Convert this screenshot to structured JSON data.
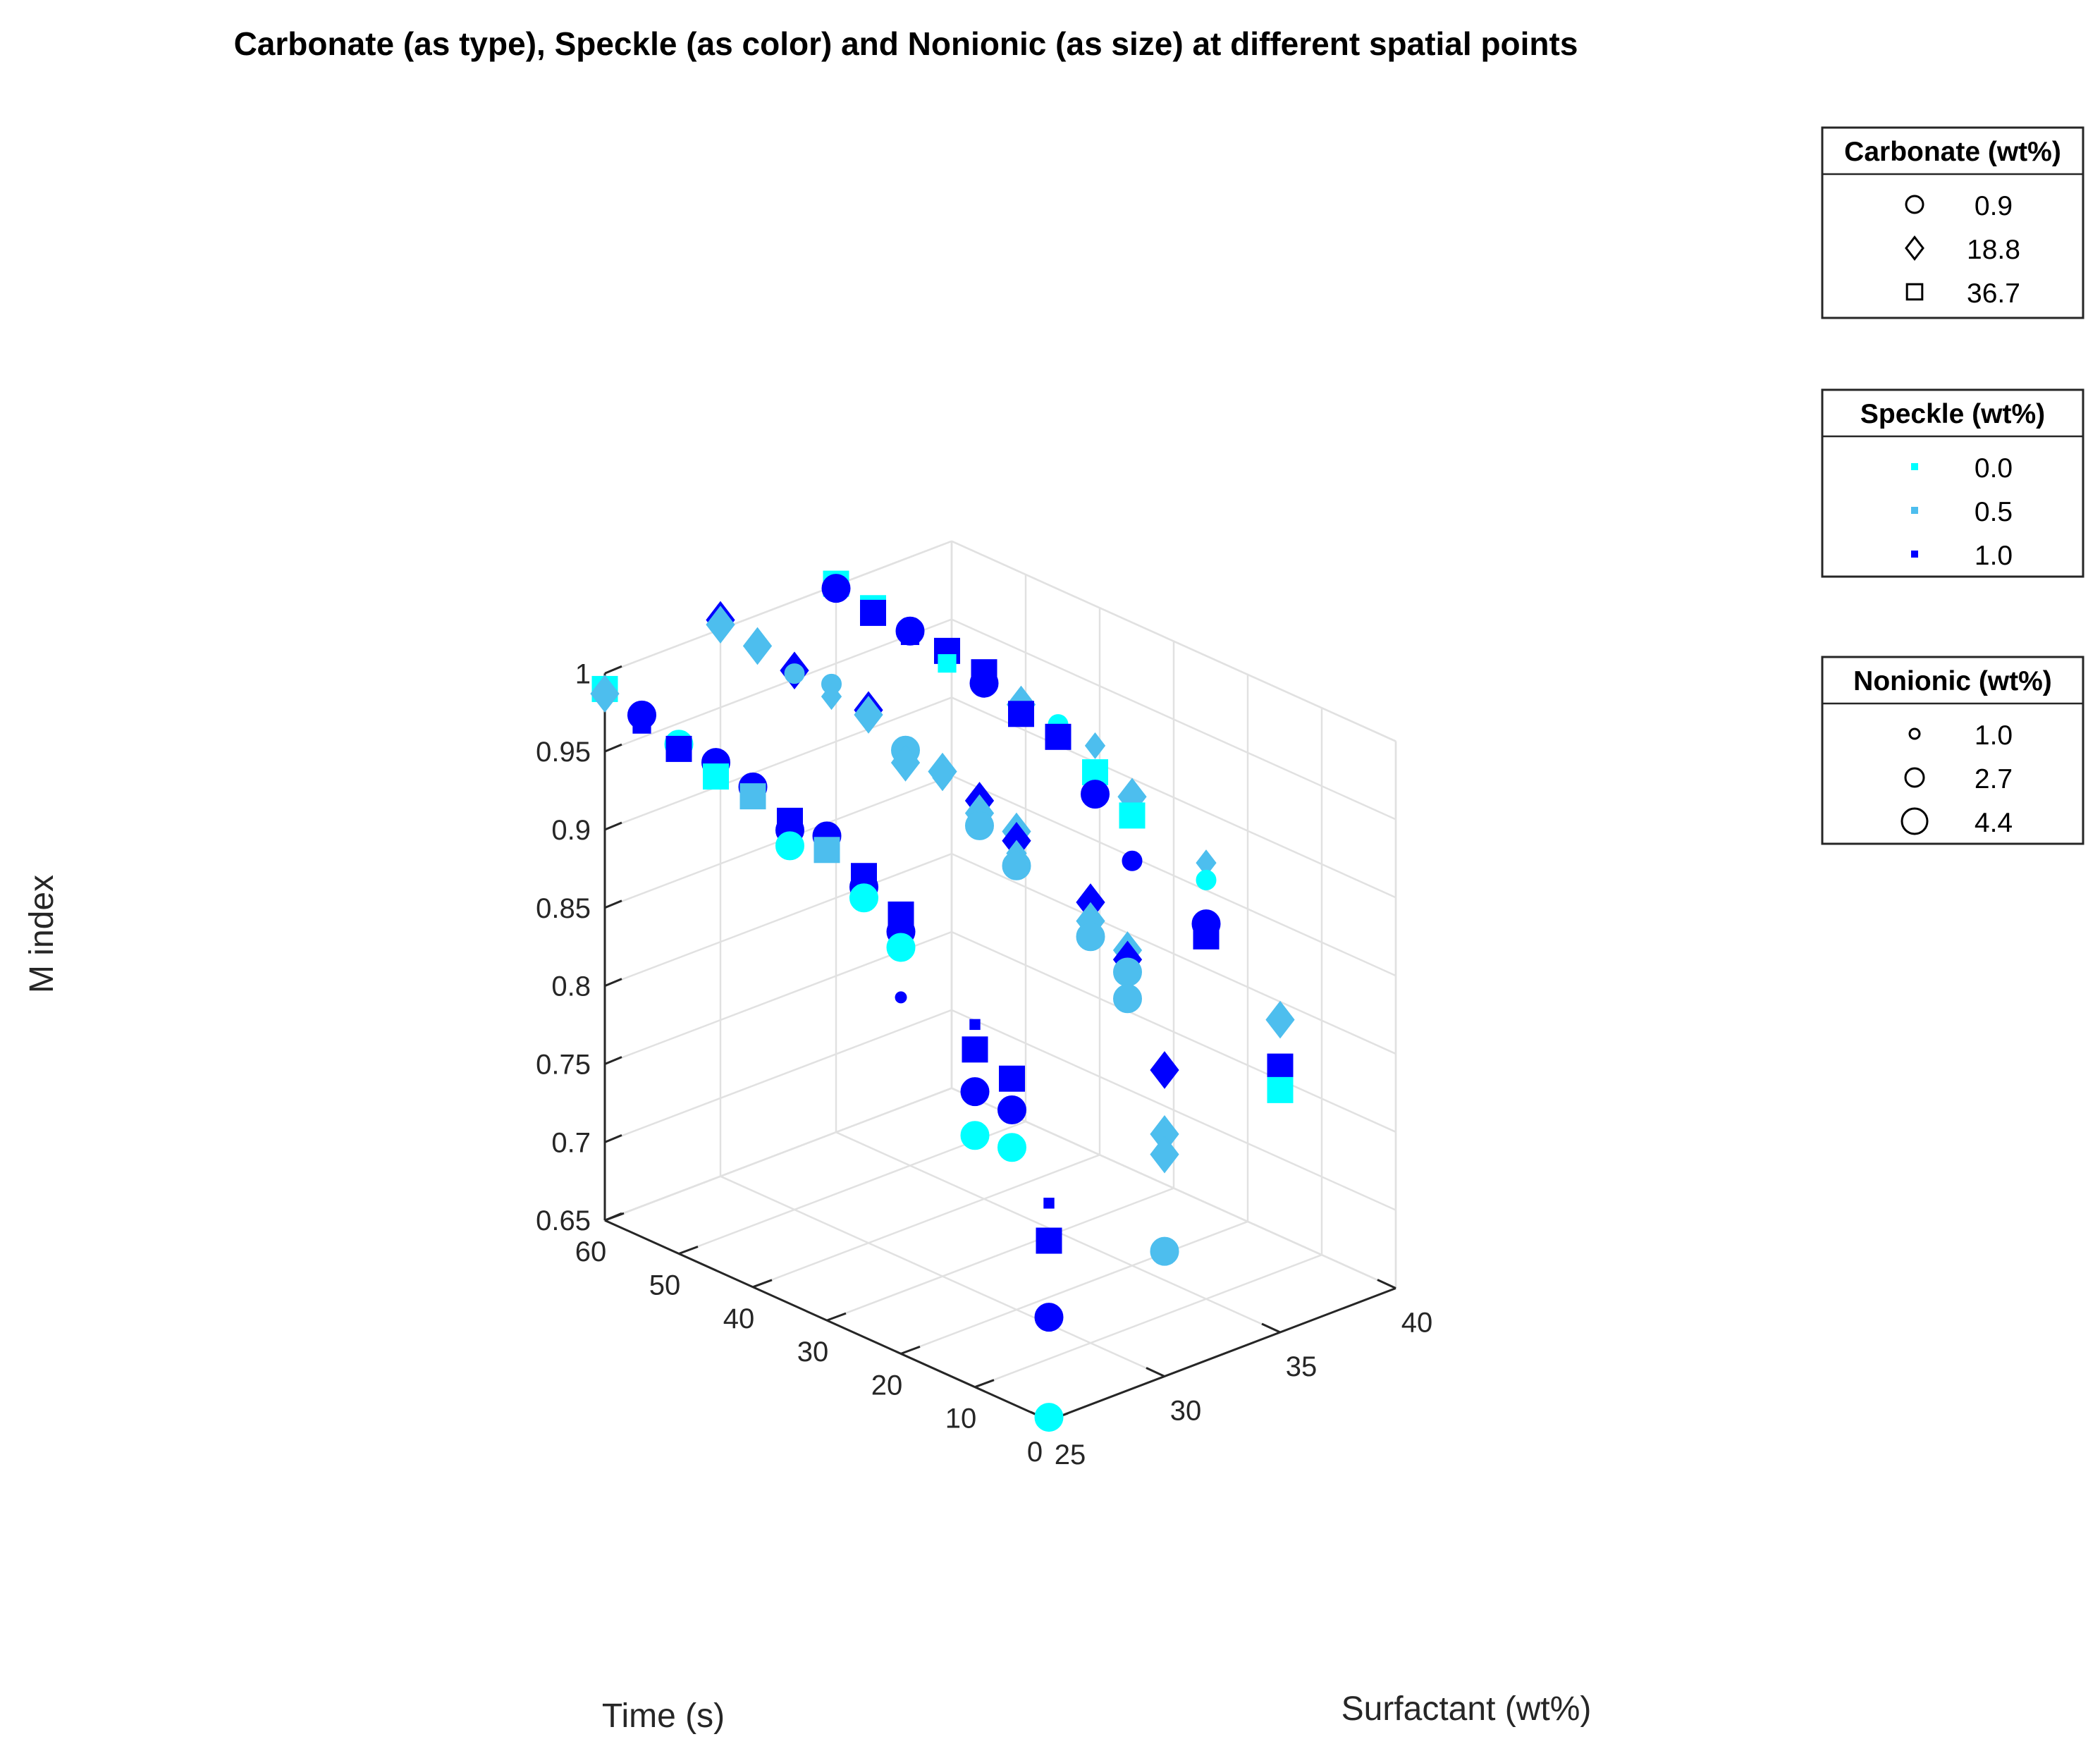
{
  "chart_data": {
    "type": "scatter3d",
    "title": "Carbonate (as type), Speckle (as color) and Nonionic (as size) at different spatial points",
    "xlabel": "Time (s)",
    "ylabel": "Surfactant (wt%)",
    "zlabel": "M index",
    "xlim": [
      0,
      60
    ],
    "ylim": [
      25,
      40
    ],
    "zlim": [
      0.65,
      1.0
    ],
    "xticks": [
      "0",
      "10",
      "20",
      "30",
      "40",
      "50",
      "60"
    ],
    "yticks": [
      "25",
      "30",
      "35",
      "40"
    ],
    "zticks": [
      "0.65",
      "0.7",
      "0.75",
      "0.8",
      "0.85",
      "0.9",
      "0.95",
      "1"
    ],
    "grid": true,
    "colors": {
      "speckle_0.0": "#00FFFF",
      "speckle_0.5": "#4DBEEE",
      "speckle_1.0": "#0000FF"
    },
    "legends": [
      {
        "title": "Carbonate (wt%)",
        "kind": "marker",
        "entries": [
          {
            "label": "0.9",
            "marker": "circle"
          },
          {
            "label": "18.8",
            "marker": "diamond"
          },
          {
            "label": "36.7",
            "marker": "square"
          }
        ]
      },
      {
        "title": "Speckle (wt%)",
        "kind": "color",
        "entries": [
          {
            "label": "0.0",
            "color": "#00FFFF"
          },
          {
            "label": "0.5",
            "color": "#4DBEEE"
          },
          {
            "label": "1.0",
            "color": "#0000FF"
          }
        ]
      },
      {
        "title": "Nonionic (wt%)",
        "kind": "size",
        "entries": [
          {
            "label": "1.0",
            "size": 1
          },
          {
            "label": "2.7",
            "size": 2
          },
          {
            "label": "4.4",
            "size": 3
          }
        ]
      }
    ],
    "points": [
      {
        "t": 60,
        "s": 25,
        "m": 0.99,
        "car": "square",
        "spk": 0.0,
        "non": 4.4
      },
      {
        "t": 60,
        "s": 25,
        "m": 0.987,
        "car": "diamond",
        "spk": 0.5,
        "non": 4.4
      },
      {
        "t": 55,
        "s": 25,
        "m": 0.984,
        "car": "circle",
        "spk": 1.0,
        "non": 4.4
      },
      {
        "t": 55,
        "s": 25,
        "m": 0.978,
        "car": "square",
        "spk": 1.0,
        "non": 2.7
      },
      {
        "t": 50,
        "s": 25,
        "m": 0.98,
        "car": "circle",
        "spk": 1.0,
        "non": 1.0
      },
      {
        "t": 50,
        "s": 25,
        "m": 0.976,
        "car": "circle",
        "spk": 0.0,
        "non": 4.4
      },
      {
        "t": 50,
        "s": 25,
        "m": 0.973,
        "car": "square",
        "spk": 1.0,
        "non": 4.4
      },
      {
        "t": 45,
        "s": 25,
        "m": 0.975,
        "car": "circle",
        "spk": 1.0,
        "non": 4.4
      },
      {
        "t": 45,
        "s": 25,
        "m": 0.966,
        "car": "square",
        "spk": 0.0,
        "non": 4.4
      },
      {
        "t": 40,
        "s": 25,
        "m": 0.97,
        "car": "circle",
        "spk": 1.0,
        "non": 4.4
      },
      {
        "t": 40,
        "s": 25,
        "m": 0.964,
        "car": "square",
        "spk": 0.5,
        "non": 4.4
      },
      {
        "t": 35,
        "s": 25,
        "m": 0.959,
        "car": "square",
        "spk": 1.0,
        "non": 4.4
      },
      {
        "t": 35,
        "s": 25,
        "m": 0.953,
        "car": "circle",
        "spk": 1.0,
        "non": 4.4
      },
      {
        "t": 35,
        "s": 25,
        "m": 0.943,
        "car": "circle",
        "spk": 0.0,
        "non": 4.4
      },
      {
        "t": 30,
        "s": 25,
        "m": 0.96,
        "car": "circle",
        "spk": 1.0,
        "non": 4.4
      },
      {
        "t": 30,
        "s": 25,
        "m": 0.951,
        "car": "square",
        "spk": 0.5,
        "non": 4.4
      },
      {
        "t": 25,
        "s": 25,
        "m": 0.945,
        "car": "square",
        "spk": 1.0,
        "non": 4.4
      },
      {
        "t": 25,
        "s": 25,
        "m": 0.938,
        "car": "circle",
        "spk": 1.0,
        "non": 4.4
      },
      {
        "t": 25,
        "s": 25,
        "m": 0.931,
        "car": "circle",
        "spk": 0.0,
        "non": 4.4
      },
      {
        "t": 20,
        "s": 25,
        "m": 0.931,
        "car": "square",
        "spk": 1.0,
        "non": 4.4
      },
      {
        "t": 20,
        "s": 25,
        "m": 0.92,
        "car": "circle",
        "spk": 1.0,
        "non": 4.4
      },
      {
        "t": 20,
        "s": 25,
        "m": 0.91,
        "car": "circle",
        "spk": 0.0,
        "non": 4.4
      },
      {
        "t": 20,
        "s": 25,
        "m": 0.878,
        "car": "circle",
        "spk": 1.0,
        "non": 1.0
      },
      {
        "t": 10,
        "s": 25,
        "m": 0.882,
        "car": "square",
        "spk": 1.0,
        "non": 1.0
      },
      {
        "t": 10,
        "s": 25,
        "m": 0.866,
        "car": "square",
        "spk": 1.0,
        "non": 4.4
      },
      {
        "t": 10,
        "s": 25,
        "m": 0.839,
        "car": "circle",
        "spk": 1.0,
        "non": 4.4
      },
      {
        "t": 10,
        "s": 25,
        "m": 0.811,
        "car": "circle",
        "spk": 0.0,
        "non": 4.4
      },
      {
        "t": 5,
        "s": 25,
        "m": 0.858,
        "car": "square",
        "spk": 1.0,
        "non": 4.4
      },
      {
        "t": 5,
        "s": 25,
        "m": 0.838,
        "car": "circle",
        "spk": 1.0,
        "non": 4.4
      },
      {
        "t": 5,
        "s": 25,
        "m": 0.814,
        "car": "circle",
        "spk": 0.0,
        "non": 4.4
      },
      {
        "t": 0,
        "s": 25,
        "m": 0.789,
        "car": "square",
        "spk": 1.0,
        "non": 1.0
      },
      {
        "t": 0,
        "s": 25,
        "m": 0.765,
        "car": "square",
        "spk": 1.0,
        "non": 4.4
      },
      {
        "t": 0,
        "s": 25,
        "m": 0.716,
        "car": "circle",
        "spk": 1.0,
        "non": 4.4
      },
      {
        "t": 0,
        "s": 25,
        "m": 0.652,
        "car": "circle",
        "spk": 0.0,
        "non": 4.4
      },
      {
        "t": 60,
        "s": 30,
        "m": 1.006,
        "car": "diamond",
        "spk": 1.0,
        "non": 4.4
      },
      {
        "t": 60,
        "s": 30,
        "m": 1.003,
        "car": "diamond",
        "spk": 0.5,
        "non": 4.4
      },
      {
        "t": 55,
        "s": 30,
        "m": 1.0,
        "car": "diamond",
        "spk": 0.5,
        "non": 4.4
      },
      {
        "t": 55,
        "s": 30,
        "m": 0.997,
        "car": "diamond",
        "spk": 0.5,
        "non": 2.7
      },
      {
        "t": 50,
        "s": 30,
        "m": 0.995,
        "car": "diamond",
        "spk": 1.0,
        "non": 4.4
      },
      {
        "t": 50,
        "s": 30,
        "m": 0.993,
        "car": "circle",
        "spk": 0.5,
        "non": 2.7
      },
      {
        "t": 45,
        "s": 30,
        "m": 0.997,
        "car": "circle",
        "spk": 0.5,
        "non": 2.7
      },
      {
        "t": 45,
        "s": 30,
        "m": 0.989,
        "car": "diamond",
        "spk": 0.5,
        "non": 2.7
      },
      {
        "t": 40,
        "s": 30,
        "m": 0.991,
        "car": "diamond",
        "spk": 1.0,
        "non": 4.4
      },
      {
        "t": 40,
        "s": 30,
        "m": 0.988,
        "car": "diamond",
        "spk": 0.5,
        "non": 4.4
      },
      {
        "t": 35,
        "s": 30,
        "m": 0.976,
        "car": "circle",
        "spk": 0.5,
        "non": 4.4
      },
      {
        "t": 35,
        "s": 30,
        "m": 0.968,
        "car": "diamond",
        "spk": 0.5,
        "non": 4.4
      },
      {
        "t": 30,
        "s": 30,
        "m": 0.973,
        "car": "diamond",
        "spk": 0.5,
        "non": 4.4
      },
      {
        "t": 30,
        "s": 30,
        "m": 0.969,
        "car": "diamond",
        "spk": 0.5,
        "non": 2.7
      },
      {
        "t": 25,
        "s": 30,
        "m": 0.965,
        "car": "diamond",
        "spk": 1.0,
        "non": 4.4
      },
      {
        "t": 25,
        "s": 30,
        "m": 0.957,
        "car": "diamond",
        "spk": 0.5,
        "non": 4.4
      },
      {
        "t": 25,
        "s": 30,
        "m": 0.949,
        "car": "circle",
        "spk": 0.5,
        "non": 4.4
      },
      {
        "t": 20,
        "s": 30,
        "m": 0.956,
        "car": "diamond",
        "spk": 0.5,
        "non": 4.4
      },
      {
        "t": 20,
        "s": 30,
        "m": 0.95,
        "car": "diamond",
        "spk": 1.0,
        "non": 4.4
      },
      {
        "t": 20,
        "s": 30,
        "m": 0.942,
        "car": "diamond",
        "spk": 0.5,
        "non": 2.7
      },
      {
        "t": 20,
        "s": 30,
        "m": 0.934,
        "car": "circle",
        "spk": 0.5,
        "non": 4.4
      },
      {
        "t": 10,
        "s": 30,
        "m": 0.932,
        "car": "diamond",
        "spk": 1.0,
        "non": 4.4
      },
      {
        "t": 10,
        "s": 30,
        "m": 0.92,
        "car": "diamond",
        "spk": 0.5,
        "non": 4.4
      },
      {
        "t": 10,
        "s": 30,
        "m": 0.91,
        "car": "circle",
        "spk": 0.5,
        "non": 4.4
      },
      {
        "t": 5,
        "s": 30,
        "m": 0.912,
        "car": "diamond",
        "spk": 0.5,
        "non": 4.4
      },
      {
        "t": 5,
        "s": 30,
        "m": 0.906,
        "car": "diamond",
        "spk": 1.0,
        "non": 4.4
      },
      {
        "t": 5,
        "s": 30,
        "m": 0.898,
        "car": "circle",
        "spk": 0.5,
        "non": 4.4
      },
      {
        "t": 5,
        "s": 30,
        "m": 0.881,
        "car": "circle",
        "spk": 0.5,
        "non": 4.4
      },
      {
        "t": 0,
        "s": 30,
        "m": 0.846,
        "car": "diamond",
        "spk": 1.0,
        "non": 4.4
      },
      {
        "t": 0,
        "s": 30,
        "m": 0.805,
        "car": "diamond",
        "spk": 0.5,
        "non": 4.4
      },
      {
        "t": 0,
        "s": 30,
        "m": 0.792,
        "car": "diamond",
        "spk": 0.5,
        "non": 4.4
      },
      {
        "t": 0,
        "s": 30,
        "m": 0.73,
        "car": "circle",
        "spk": 0.5,
        "non": 4.4
      },
      {
        "t": 60,
        "s": 35,
        "m": 1.001,
        "car": "square",
        "spk": 0.0,
        "non": 4.4
      },
      {
        "t": 60,
        "s": 35,
        "m": 0.998,
        "car": "circle",
        "spk": 1.0,
        "non": 4.4
      },
      {
        "t": 55,
        "s": 35,
        "m": 0.996,
        "car": "square",
        "spk": 0.0,
        "non": 4.4
      },
      {
        "t": 55,
        "s": 35,
        "m": 0.993,
        "car": "square",
        "spk": 1.0,
        "non": 4.4
      },
      {
        "t": 50,
        "s": 35,
        "m": 0.992,
        "car": "circle",
        "spk": 1.0,
        "non": 4.4
      },
      {
        "t": 50,
        "s": 35,
        "m": 0.989,
        "car": "square",
        "spk": 1.0,
        "non": 2.7
      },
      {
        "t": 45,
        "s": 35,
        "m": 0.99,
        "car": "square",
        "spk": 1.0,
        "non": 4.4
      },
      {
        "t": 45,
        "s": 35,
        "m": 0.982,
        "car": "square",
        "spk": 0.0,
        "non": 2.7
      },
      {
        "t": 40,
        "s": 35,
        "m": 0.987,
        "car": "square",
        "spk": 1.0,
        "non": 4.4
      },
      {
        "t": 40,
        "s": 35,
        "m": 0.98,
        "car": "circle",
        "spk": 1.0,
        "non": 4.4
      },
      {
        "t": 35,
        "s": 35,
        "m": 0.977,
        "car": "diamond",
        "spk": 0.5,
        "non": 4.4
      },
      {
        "t": 35,
        "s": 35,
        "m": 0.971,
        "car": "square",
        "spk": 1.0,
        "non": 4.4
      },
      {
        "t": 30,
        "s": 35,
        "m": 0.975,
        "car": "circle",
        "spk": 0.0,
        "non": 2.7
      },
      {
        "t": 30,
        "s": 35,
        "m": 0.967,
        "car": "square",
        "spk": 1.0,
        "non": 4.4
      },
      {
        "t": 25,
        "s": 35,
        "m": 0.972,
        "car": "diamond",
        "spk": 0.5,
        "non": 2.7
      },
      {
        "t": 25,
        "s": 35,
        "m": 0.955,
        "car": "square",
        "spk": 0.0,
        "non": 4.4
      },
      {
        "t": 25,
        "s": 35,
        "m": 0.941,
        "car": "circle",
        "spk": 1.0,
        "non": 4.4
      },
      {
        "t": 20,
        "s": 35,
        "m": 0.95,
        "car": "diamond",
        "spk": 0.5,
        "non": 4.4
      },
      {
        "t": 20,
        "s": 35,
        "m": 0.938,
        "car": "square",
        "spk": 0.0,
        "non": 4.4
      },
      {
        "t": 20,
        "s": 35,
        "m": 0.909,
        "car": "circle",
        "spk": 1.0,
        "non": 2.7
      },
      {
        "t": 10,
        "s": 35,
        "m": 0.929,
        "car": "diamond",
        "spk": 0.5,
        "non": 2.7
      },
      {
        "t": 10,
        "s": 35,
        "m": 0.918,
        "car": "circle",
        "spk": 0.0,
        "non": 2.7
      },
      {
        "t": 10,
        "s": 35,
        "m": 0.89,
        "car": "circle",
        "spk": 1.0,
        "non": 4.4
      },
      {
        "t": 10,
        "s": 35,
        "m": 0.882,
        "car": "square",
        "spk": 1.0,
        "non": 4.4
      },
      {
        "t": 0,
        "s": 35,
        "m": 0.85,
        "car": "diamond",
        "spk": 0.5,
        "non": 4.4
      },
      {
        "t": 0,
        "s": 35,
        "m": 0.82,
        "car": "square",
        "spk": 1.0,
        "non": 4.4
      },
      {
        "t": 0,
        "s": 35,
        "m": 0.805,
        "car": "square",
        "spk": 0.0,
        "non": 4.4
      }
    ]
  }
}
